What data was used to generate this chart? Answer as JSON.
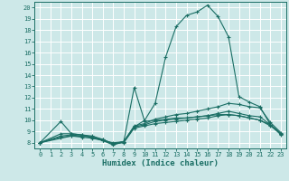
{
  "xlabel": "Humidex (Indice chaleur)",
  "background_color": "#cde8e8",
  "grid_color": "#ffffff",
  "line_color": "#1a6e64",
  "xlim": [
    -0.5,
    23.5
  ],
  "ylim": [
    7.5,
    20.5
  ],
  "xticks": [
    0,
    1,
    2,
    3,
    4,
    5,
    6,
    7,
    8,
    9,
    10,
    11,
    12,
    13,
    14,
    15,
    16,
    17,
    18,
    19,
    20,
    21,
    22,
    23
  ],
  "yticks": [
    8,
    9,
    10,
    11,
    12,
    13,
    14,
    15,
    16,
    17,
    18,
    19,
    20
  ],
  "curve1_x": [
    0,
    2,
    3,
    4,
    5,
    6,
    7,
    8,
    9,
    10,
    11,
    12,
    13,
    14,
    15,
    16,
    17,
    18,
    19,
    20,
    21,
    22,
    23
  ],
  "curve1_y": [
    8.0,
    9.9,
    8.8,
    8.7,
    8.5,
    8.2,
    8.0,
    8.1,
    9.4,
    10.0,
    11.5,
    15.6,
    18.3,
    19.3,
    19.6,
    20.2,
    19.2,
    17.4,
    12.1,
    11.6,
    11.2,
    9.6,
    8.8
  ],
  "curve2_x": [
    0,
    2,
    3,
    4,
    5,
    6,
    7,
    8,
    9,
    10,
    11,
    12,
    13,
    14,
    15,
    16,
    17,
    18,
    19,
    20,
    21,
    22,
    23
  ],
  "curve2_y": [
    8.0,
    8.8,
    8.8,
    8.7,
    8.6,
    8.3,
    7.9,
    8.1,
    9.5,
    9.7,
    10.1,
    10.3,
    10.5,
    10.6,
    10.8,
    11.0,
    11.2,
    11.5,
    11.4,
    11.2,
    11.1,
    9.8,
    8.9
  ],
  "curve3_x": [
    0,
    2,
    3,
    4,
    5,
    6,
    7,
    8,
    9,
    10,
    11,
    12,
    13,
    14,
    15,
    16,
    17,
    18,
    19,
    20,
    21,
    22,
    23
  ],
  "curve3_y": [
    8.0,
    8.6,
    8.7,
    8.6,
    8.5,
    8.3,
    7.9,
    8.1,
    9.4,
    9.6,
    9.9,
    10.0,
    10.1,
    10.2,
    10.3,
    10.4,
    10.6,
    10.8,
    10.6,
    10.4,
    10.3,
    9.6,
    8.8
  ],
  "curve4_x": [
    0,
    2,
    3,
    4,
    5,
    6,
    7,
    8,
    9,
    10,
    11,
    12,
    13,
    14,
    15,
    16,
    17,
    18,
    19,
    20,
    21,
    22,
    23
  ],
  "curve4_y": [
    8.0,
    8.5,
    8.6,
    8.5,
    8.4,
    8.2,
    7.9,
    8.0,
    9.3,
    9.5,
    9.7,
    9.8,
    9.9,
    10.0,
    10.1,
    10.2,
    10.4,
    10.5,
    10.4,
    10.2,
    10.0,
    9.5,
    8.8
  ],
  "curve_secondary_x": [
    0,
    3,
    4,
    5,
    6,
    7,
    8,
    9,
    10,
    11,
    12,
    13,
    14,
    15,
    16,
    17,
    18,
    19,
    20,
    21,
    22,
    23
  ],
  "curve_secondary_y": [
    8.0,
    8.6,
    8.6,
    8.5,
    8.2,
    7.8,
    8.1,
    12.9,
    9.9,
    10.0,
    10.1,
    10.2,
    10.2,
    10.3,
    10.4,
    10.5,
    10.5,
    10.4,
    10.2,
    10.0,
    9.6,
    8.7
  ]
}
